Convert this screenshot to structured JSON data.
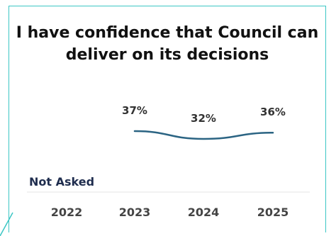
{
  "chart_data": {
    "type": "line",
    "title": "I have confidence that Council can deliver on its decisions",
    "categories": [
      "2022",
      "2023",
      "2024",
      "2025"
    ],
    "series": [
      {
        "values": [
          null,
          37,
          32,
          36
        ],
        "labels": [
          "",
          "37%",
          "32%",
          "36%"
        ]
      }
    ],
    "annotations": [
      {
        "category": "2022",
        "text": "Not Asked"
      }
    ],
    "ylim": [
      25,
      45
    ],
    "grid": false,
    "legend": "none"
  },
  "colors": {
    "line": "#2b6483",
    "border": "#3cc6c4",
    "annotation": "#1f2d4e",
    "axis_text": "#444444",
    "title": "#111111"
  }
}
